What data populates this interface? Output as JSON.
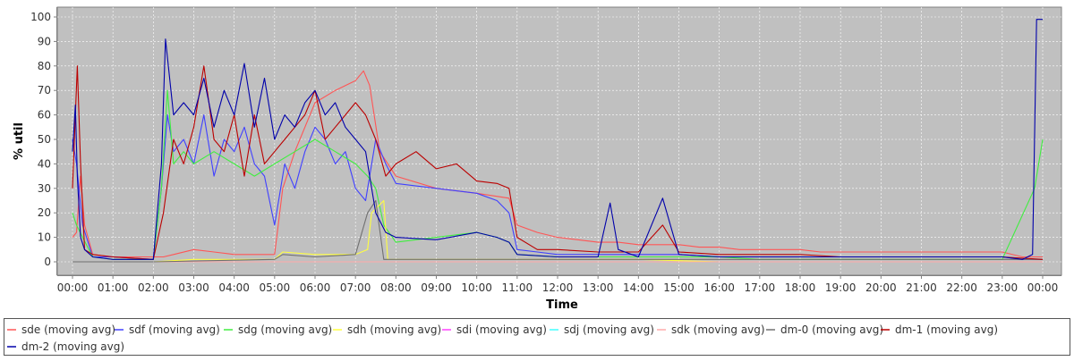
{
  "chart_data": {
    "type": "line",
    "xlabel": "Time",
    "ylabel": "% util",
    "ylim": [
      0,
      100
    ],
    "xlim": [
      "00:00",
      "00:00 (+1d)"
    ],
    "y_ticks": [
      "0",
      "10",
      "20",
      "30",
      "40",
      "50",
      "60",
      "70",
      "80",
      "90",
      "100"
    ],
    "x_ticks": [
      "00:00",
      "01:00",
      "02:00",
      "03:00",
      "04:00",
      "05:00",
      "06:00",
      "07:00",
      "08:00",
      "09:00",
      "10:00",
      "11:00",
      "12:00",
      "13:00",
      "14:00",
      "15:00",
      "16:00",
      "17:00",
      "18:00",
      "19:00",
      "20:00",
      "21:00",
      "22:00",
      "23:00",
      "00:00"
    ],
    "grid": true,
    "legend_position": "bottom",
    "background": "#c0c0c0",
    "series": [
      {
        "name": "sde (moving avg)",
        "color": "#ff5555",
        "x": [
          0.0,
          0.1,
          0.2,
          0.3,
          0.5,
          1.0,
          2.0,
          2.25,
          2.5,
          3.0,
          3.5,
          4.0,
          4.5,
          5.0,
          5.2,
          5.5,
          6.0,
          6.5,
          7.0,
          7.2,
          7.35,
          7.6,
          8.0,
          9.0,
          10.0,
          10.8,
          11.0,
          11.5,
          12.0,
          12.5,
          13.0,
          13.5,
          14.0,
          14.5,
          15.0,
          15.5,
          16.0,
          16.5,
          17.0,
          17.5,
          18.0,
          18.5,
          19.0,
          19.5,
          20.0,
          20.5,
          21.0,
          21.5,
          22.0,
          22.5,
          23.0,
          23.5,
          24.0
        ],
        "y": [
          10,
          12,
          35,
          15,
          3,
          2,
          2,
          2,
          3,
          5,
          4,
          3,
          3,
          3,
          30,
          45,
          65,
          70,
          74,
          78,
          72,
          45,
          35,
          30,
          28,
          26,
          15,
          12,
          10,
          9,
          8,
          8,
          7,
          7,
          7,
          6,
          6,
          5,
          5,
          5,
          5,
          4,
          4,
          4,
          4,
          4,
          4,
          4,
          4,
          4,
          4,
          2,
          2
        ]
      },
      {
        "name": "sdf (moving avg)",
        "color": "#4040ff",
        "x": [
          0.0,
          0.1,
          0.25,
          0.5,
          1.0,
          2.0,
          2.2,
          2.35,
          2.5,
          2.75,
          3.0,
          3.25,
          3.5,
          3.75,
          4.0,
          4.25,
          4.5,
          4.75,
          5.0,
          5.25,
          5.5,
          5.75,
          6.0,
          6.25,
          6.5,
          6.75,
          7.0,
          7.25,
          7.5,
          7.75,
          8.0,
          9.0,
          10.0,
          10.5,
          10.8,
          11.0,
          11.5,
          12.0,
          13.0,
          14.0,
          15.0,
          16.0,
          17.0,
          18.0,
          19.0,
          20.0,
          21.0,
          22.0,
          23.0,
          23.5,
          24.0
        ],
        "y": [
          50,
          40,
          15,
          2,
          2,
          1,
          30,
          60,
          45,
          50,
          40,
          60,
          35,
          50,
          45,
          55,
          40,
          35,
          15,
          40,
          30,
          45,
          55,
          50,
          40,
          45,
          30,
          25,
          50,
          40,
          32,
          30,
          28,
          25,
          20,
          5,
          4,
          3,
          3,
          3,
          3,
          2,
          2,
          2,
          2,
          2,
          2,
          2,
          2,
          1,
          1
        ]
      },
      {
        "name": "sdg (moving avg)",
        "color": "#40ee40",
        "x": [
          0.0,
          0.1,
          0.25,
          0.5,
          1.0,
          2.0,
          2.2,
          2.35,
          2.5,
          2.75,
          3.0,
          3.5,
          4.0,
          4.5,
          5.0,
          5.5,
          6.0,
          6.5,
          7.0,
          7.3,
          7.5,
          7.7,
          8.0,
          9.0,
          10.0,
          10.5,
          10.8,
          11.0,
          12.0,
          13.0,
          14.0,
          15.0,
          16.0,
          17.0,
          18.0,
          19.0,
          20.0,
          21.0,
          22.0,
          23.0,
          23.8,
          24.0
        ],
        "y": [
          20,
          15,
          10,
          2,
          1,
          1,
          30,
          70,
          40,
          45,
          40,
          45,
          40,
          35,
          40,
          45,
          50,
          45,
          40,
          35,
          30,
          15,
          8,
          10,
          12,
          10,
          8,
          3,
          2,
          2,
          2,
          2,
          2,
          1,
          1,
          1,
          1,
          1,
          1,
          1,
          30,
          50
        ]
      },
      {
        "name": "sdh (moving avg)",
        "color": "#ffff40",
        "x": [
          0.0,
          2.0,
          3.0,
          4.0,
          5.0,
          5.2,
          6.0,
          7.0,
          7.3,
          7.4,
          7.7,
          7.8,
          8.0,
          10.0,
          12.0,
          14.0,
          16.0,
          18.0,
          20.0,
          22.0,
          24.0
        ],
        "y": [
          0,
          0,
          1,
          1,
          1,
          4,
          3,
          3,
          5,
          20,
          25,
          1,
          1,
          1,
          1,
          1,
          0,
          0,
          0,
          0,
          0
        ]
      },
      {
        "name": "sdi (moving avg)",
        "color": "#ff40ff",
        "x": [
          0.0,
          24.0
        ],
        "y": [
          0,
          0
        ]
      },
      {
        "name": "sdj (moving avg)",
        "color": "#40ffff",
        "x": [
          0.0,
          24.0
        ],
        "y": [
          0,
          0
        ]
      },
      {
        "name": "sdk (moving avg)",
        "color": "#ffaaaa",
        "x": [
          0.0,
          24.0
        ],
        "y": [
          0,
          0
        ]
      },
      {
        "name": "dm-0 (moving avg)",
        "color": "#707070",
        "x": [
          0.0,
          2.0,
          5.0,
          5.2,
          6.0,
          7.0,
          7.3,
          7.5,
          7.7,
          8.0,
          10.0,
          12.0,
          14.0,
          16.0,
          18.0,
          20.0,
          22.0,
          24.0
        ],
        "y": [
          0,
          0,
          1,
          3,
          2,
          3,
          20,
          25,
          1,
          1,
          1,
          1,
          1,
          1,
          1,
          1,
          1,
          1
        ]
      },
      {
        "name": "dm-1 (moving avg)",
        "color": "#bb0000",
        "x": [
          0.0,
          0.07,
          0.12,
          0.2,
          0.3,
          0.5,
          1.0,
          2.0,
          2.25,
          2.5,
          2.75,
          3.0,
          3.25,
          3.5,
          3.75,
          4.0,
          4.25,
          4.5,
          4.75,
          5.0,
          5.25,
          5.5,
          5.75,
          6.0,
          6.25,
          6.5,
          6.75,
          7.0,
          7.25,
          7.5,
          7.75,
          8.0,
          8.5,
          9.0,
          9.5,
          10.0,
          10.5,
          10.8,
          11.0,
          11.5,
          12.0,
          13.0,
          14.0,
          14.6,
          15.0,
          16.0,
          17.0,
          18.0,
          19.0,
          20.0,
          21.0,
          22.0,
          23.0,
          24.0
        ],
        "y": [
          30,
          60,
          80,
          40,
          5,
          3,
          2,
          1,
          20,
          50,
          40,
          55,
          80,
          50,
          45,
          60,
          35,
          60,
          40,
          45,
          50,
          55,
          60,
          70,
          50,
          55,
          60,
          65,
          60,
          50,
          35,
          40,
          45,
          38,
          40,
          33,
          32,
          30,
          10,
          5,
          5,
          4,
          4,
          15,
          4,
          3,
          3,
          3,
          2,
          2,
          2,
          2,
          2,
          1
        ]
      },
      {
        "name": "dm-2 (moving avg)",
        "color": "#0000aa",
        "x": [
          0.0,
          0.07,
          0.12,
          0.2,
          0.3,
          0.5,
          1.0,
          2.0,
          2.2,
          2.3,
          2.5,
          2.75,
          3.0,
          3.25,
          3.5,
          3.75,
          4.0,
          4.25,
          4.5,
          4.75,
          5.0,
          5.25,
          5.5,
          5.75,
          6.0,
          6.25,
          6.5,
          6.75,
          7.0,
          7.25,
          7.5,
          7.75,
          8.0,
          9.0,
          10.0,
          10.5,
          10.8,
          11.0,
          12.0,
          13.0,
          13.3,
          13.5,
          14.0,
          14.6,
          15.0,
          16.0,
          17.0,
          18.0,
          19.0,
          20.0,
          21.0,
          22.0,
          23.0,
          23.5,
          23.75,
          23.85,
          24.0
        ],
        "y": [
          45,
          64,
          35,
          10,
          5,
          2,
          1,
          1,
          40,
          91,
          60,
          65,
          60,
          75,
          55,
          70,
          60,
          81,
          55,
          75,
          50,
          60,
          55,
          65,
          70,
          60,
          65,
          55,
          50,
          45,
          20,
          12,
          10,
          9,
          12,
          10,
          8,
          3,
          2,
          2,
          24,
          5,
          2,
          26,
          3,
          2,
          2,
          2,
          2,
          2,
          2,
          2,
          2,
          1,
          3,
          99,
          99
        ]
      }
    ]
  }
}
